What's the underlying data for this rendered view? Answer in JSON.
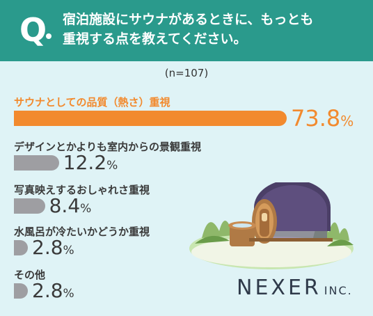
{
  "header": {
    "q_mark": "Q",
    "question_line1": "宿泊施設にサウナがあるときに、もっとも",
    "question_line2": "重視する点を教えてください。"
  },
  "sample_note": "(n=107)",
  "colors": {
    "header_bg": "#2a9a8c",
    "highlight": "#f28a2e",
    "bar_gray": "#9e9ea2",
    "background": "#dff3f6"
  },
  "chart_data": {
    "type": "bar",
    "orientation": "horizontal",
    "unit": "%",
    "categories": [
      "サウナとしての品質（熱さ）重視",
      "デザインとかよりも室内からの景観重視",
      "写真映えするおしゃれさ重視",
      "水風呂が冷たいかどうか重視",
      "その他"
    ],
    "values": [
      73.8,
      12.2,
      8.4,
      2.8,
      2.8
    ],
    "value_labels": [
      "73.8",
      "12.2",
      "8.4",
      "2.8",
      "2.8"
    ],
    "xlim": [
      0,
      73.8
    ]
  },
  "brand": {
    "name": "NEXER",
    "suffix": "INC."
  }
}
